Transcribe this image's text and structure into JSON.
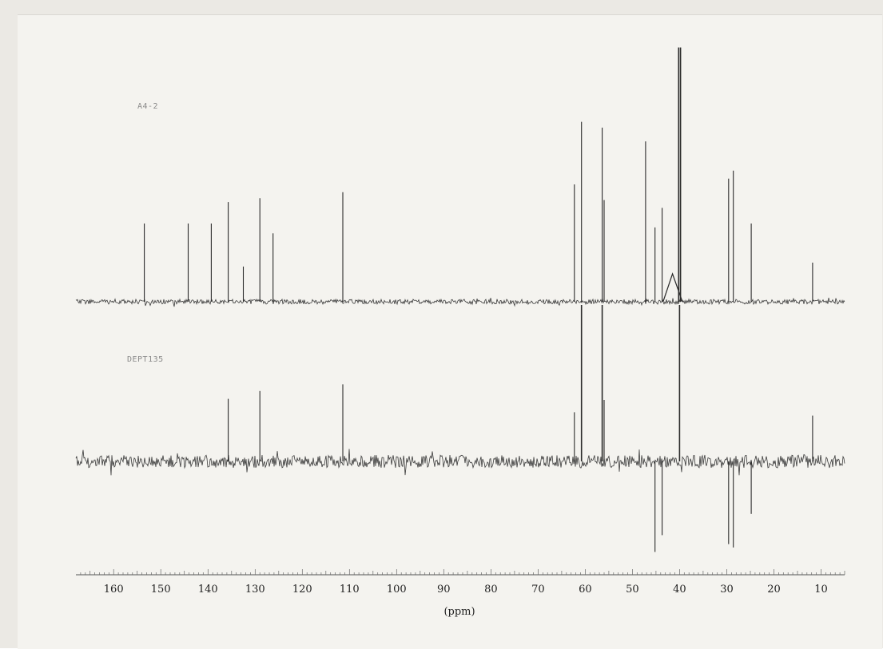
{
  "chart_data": [
    {
      "type": "line",
      "label": "A4-2",
      "description_kind": "13C NMR spectrum",
      "x_unit": "ppm",
      "xlim": [
        168,
        5
      ],
      "x_reversed": true,
      "peaks": [
        {
          "ppm": 153.5,
          "intensity": 0.4
        },
        {
          "ppm": 144.2,
          "intensity": 0.4
        },
        {
          "ppm": 139.3,
          "intensity": 0.4
        },
        {
          "ppm": 135.7,
          "intensity": 0.51
        },
        {
          "ppm": 132.5,
          "intensity": 0.18
        },
        {
          "ppm": 129.0,
          "intensity": 0.53
        },
        {
          "ppm": 126.2,
          "intensity": 0.35
        },
        {
          "ppm": 111.4,
          "intensity": 0.56
        },
        {
          "ppm": 62.3,
          "intensity": 0.6
        },
        {
          "ppm": 60.8,
          "intensity": 0.92
        },
        {
          "ppm": 56.4,
          "intensity": 0.89
        },
        {
          "ppm": 56.0,
          "intensity": 0.52
        },
        {
          "ppm": 47.2,
          "intensity": 0.82
        },
        {
          "ppm": 45.2,
          "intensity": 0.38
        },
        {
          "ppm": 43.7,
          "intensity": 0.48
        },
        {
          "ppm": 40.2,
          "intensity": 1.3
        },
        {
          "ppm": 39.8,
          "intensity": 1.3
        },
        {
          "ppm": 29.6,
          "intensity": 0.63
        },
        {
          "ppm": 28.6,
          "intensity": 0.67
        },
        {
          "ppm": 24.8,
          "intensity": 0.4
        },
        {
          "ppm": 11.8,
          "intensity": 0.2
        }
      ]
    },
    {
      "type": "line",
      "label": "DEPT135",
      "description_kind": "DEPT-135 spectrum",
      "x_unit": "ppm",
      "xlim": [
        168,
        5
      ],
      "x_reversed": true,
      "peaks": [
        {
          "ppm": 135.7,
          "intensity": 0.56
        },
        {
          "ppm": 129.0,
          "intensity": 0.63
        },
        {
          "ppm": 111.4,
          "intensity": 0.69
        },
        {
          "ppm": 62.3,
          "intensity": 0.44
        },
        {
          "ppm": 60.8,
          "intensity": 1.4
        },
        {
          "ppm": 56.4,
          "intensity": 1.4
        },
        {
          "ppm": 56.0,
          "intensity": 0.55
        },
        {
          "ppm": 45.2,
          "intensity": -0.81
        },
        {
          "ppm": 43.7,
          "intensity": -0.66
        },
        {
          "ppm": 40.0,
          "intensity": 1.4
        },
        {
          "ppm": 29.6,
          "intensity": -0.74
        },
        {
          "ppm": 28.6,
          "intensity": -0.77
        },
        {
          "ppm": 24.8,
          "intensity": -0.47
        },
        {
          "ppm": 11.8,
          "intensity": 0.41
        }
      ]
    }
  ],
  "axis": {
    "ticks": [
      160,
      150,
      140,
      130,
      120,
      110,
      100,
      90,
      80,
      70,
      60,
      50,
      40,
      30,
      20,
      10
    ],
    "title": "(ppm)"
  }
}
